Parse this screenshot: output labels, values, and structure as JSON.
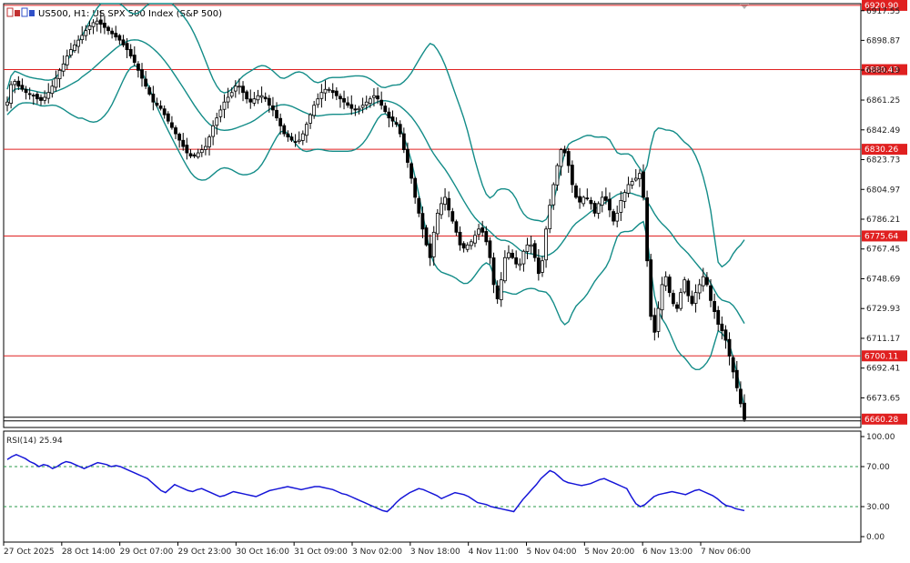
{
  "window": {
    "symbol": "US500",
    "timeframe": "H1",
    "description": "US SPX 500 Index (S&P 500)",
    "title_text": "US500, H1:  US SPX 500 Index (S&P 500)"
  },
  "colors": {
    "bull_bear_candle": "#000000",
    "bands": "#138c88",
    "level_lines": "#e02020",
    "level_label_bg": "#e02020",
    "last_price_bg": "#e02020",
    "rsi_line": "#1515d8",
    "rsi_levels": "#2a9a4a"
  },
  "chart_data": [
    {
      "type": "candlestick",
      "title": "US500, H1:  US SPX 500 Index (S&P 500)",
      "ylim": [
        6655,
        6922
      ],
      "y_ticks": [
        "6917.55",
        "6898.87",
        "6880.19",
        "6861.25",
        "6842.49",
        "6823.73",
        "6804.97",
        "6786.21",
        "6767.45",
        "6748.69",
        "6729.93",
        "6711.17",
        "6692.41",
        "6673.65"
      ],
      "x_ticks": [
        "27 Oct 2025",
        "28 Oct 14:00",
        "29 Oct 07:00",
        "29 Oct 23:00",
        "30 Oct 16:00",
        "31 Oct 09:00",
        "3 Nov 02:00",
        "3 Nov 18:00",
        "4 Nov 11:00",
        "5 Nov 04:00",
        "5 Nov 20:00",
        "6 Nov 13:00",
        "7 Nov 06:00"
      ],
      "horizontal_levels": [
        6920.9,
        6880.43,
        6830.26,
        6775.64,
        6700.11
      ],
      "horizontal_level_labels": [
        "6920.90",
        "6880.43",
        "6830.26",
        "6775.64",
        "6700.11"
      ],
      "last_price": 6660.28,
      "last_price_label": "6660.28",
      "bands_indicator": "Bollinger Bands",
      "candles_approx_close": [
        6860,
        6871,
        6873,
        6870,
        6868,
        6866,
        6865,
        6864,
        6862,
        6861,
        6863,
        6866,
        6870,
        6875,
        6880,
        6884,
        6889,
        6893,
        6896,
        6899,
        6902,
        6905,
        6908,
        6910,
        6911,
        6909,
        6907,
        6905,
        6903,
        6901,
        6899,
        6896,
        6893,
        6889,
        6885,
        6880,
        6875,
        6870,
        6865,
        6860,
        6858,
        6856,
        6852,
        6848,
        6844,
        6840,
        6836,
        6832,
        6828,
        6826,
        6826,
        6828,
        6830,
        6832,
        6838,
        6845,
        6850,
        6855,
        6860,
        6863,
        6866,
        6870,
        6870,
        6866,
        6862,
        6860,
        6862,
        6864,
        6864,
        6862,
        6858,
        6855,
        6850,
        6845,
        6840,
        6838,
        6836,
        6835,
        6836,
        6840,
        6846,
        6852,
        6858,
        6862,
        6866,
        6868,
        6868,
        6866,
        6864,
        6862,
        6860,
        6858,
        6856,
        6855,
        6856,
        6858,
        6860,
        6862,
        6864,
        6862,
        6858,
        6854,
        6850,
        6848,
        6846,
        6840,
        6830,
        6822,
        6812,
        6800,
        6790,
        6780,
        6770,
        6762,
        6778,
        6790,
        6796,
        6800,
        6792,
        6785,
        6778,
        6770,
        6768,
        6770,
        6772,
        6776,
        6780,
        6778,
        6772,
        6762,
        6745,
        6736,
        6748,
        6762,
        6765,
        6762,
        6758,
        6758,
        6766,
        6770,
        6770,
        6762,
        6752,
        6760,
        6780,
        6795,
        6808,
        6820,
        6830,
        6828,
        6820,
        6808,
        6800,
        6797,
        6800,
        6799,
        6796,
        6790,
        6796,
        6800,
        6798,
        6792,
        6785,
        6790,
        6798,
        6803,
        6808,
        6810,
        6812,
        6815,
        6800,
        6760,
        6725,
        6715,
        6730,
        6745,
        6750,
        6740,
        6733,
        6730,
        6740,
        6748,
        6738,
        6733,
        6740,
        6745,
        6750,
        6745,
        6735,
        6728,
        6720,
        6716,
        6710,
        6700,
        6690,
        6680,
        6670,
        6660
      ],
      "bands_note": "upper, middle and lower envelopes drawn around price"
    },
    {
      "type": "line",
      "title": "RSI(14) 25.94",
      "indicator": "RSI",
      "period": 14,
      "current_value": 25.94,
      "current_value_label": "25.94",
      "ylim": [
        0,
        100
      ],
      "y_ticks": [
        "100.00",
        "70.00",
        "30.00",
        "0.00"
      ],
      "levels": [
        70,
        30
      ],
      "values_approx": [
        77,
        80,
        82,
        80,
        78,
        75,
        73,
        70,
        72,
        71,
        68,
        70,
        73,
        75,
        74,
        72,
        70,
        68,
        70,
        72,
        74,
        73,
        72,
        70,
        71,
        70,
        68,
        66,
        64,
        62,
        60,
        58,
        54,
        50,
        46,
        44,
        48,
        52,
        50,
        48,
        46,
        45,
        47,
        48,
        46,
        44,
        42,
        40,
        41,
        43,
        45,
        44,
        43,
        42,
        41,
        40,
        42,
        44,
        46,
        47,
        48,
        49,
        50,
        49,
        48,
        47,
        48,
        49,
        50,
        50,
        49,
        48,
        47,
        45,
        43,
        42,
        40,
        38,
        36,
        34,
        32,
        30,
        28,
        26,
        25,
        29,
        34,
        38,
        41,
        44,
        46,
        48,
        47,
        45,
        43,
        41,
        38,
        40,
        42,
        44,
        43,
        42,
        40,
        37,
        34,
        33,
        32,
        30,
        29,
        28,
        27,
        26,
        25,
        31,
        37,
        42,
        47,
        52,
        58,
        62,
        66,
        64,
        60,
        56,
        54,
        53,
        52,
        51,
        52,
        53,
        55,
        57,
        58,
        56,
        54,
        52,
        50,
        48,
        40,
        33,
        30,
        32,
        36,
        40,
        42,
        43,
        44,
        45,
        44,
        43,
        42,
        44,
        46,
        47,
        45,
        43,
        41,
        38,
        34,
        31,
        30,
        28,
        27,
        26
      ]
    }
  ]
}
